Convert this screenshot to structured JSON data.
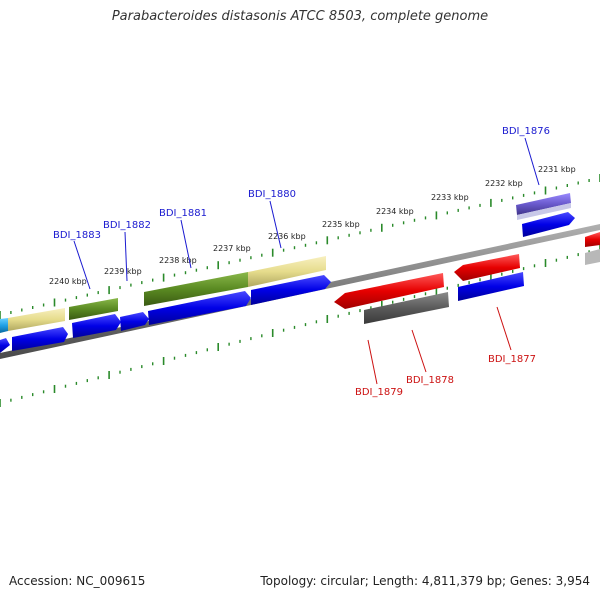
{
  "title": "Parabacteroides distasonis ATCC 8503, complete genome",
  "footer": {
    "accession": "Accession: NC_009615",
    "stats": "Topology: circular; Length: 4,811,379 bp; Genes: 3,954"
  },
  "scale_ticks": [
    "2231 kbp",
    "2232 kbp",
    "2233 kbp",
    "2234 kbp",
    "2235 kbp",
    "2236 kbp",
    "2237 kbp",
    "2238 kbp",
    "2239 kbp",
    "2240 kbp"
  ],
  "gene_labels_forward": [
    "BDI_1876",
    "BDI_1880",
    "BDI_1881",
    "BDI_1882",
    "BDI_1883"
  ],
  "gene_labels_reverse": [
    "BDI_1877",
    "BDI_1878",
    "BDI_1879"
  ],
  "colors": {
    "backbone": "#808080",
    "tick_green": "#2a8a2a",
    "cds": "#0000e6",
    "feature_red": "#e60000",
    "feature_olive": "#5a8a22",
    "feature_khaki": "#e6dc8c",
    "feature_gray": "#5a5a5a",
    "feature_purple": "#6a5acd",
    "feature_cyan": "#1ea0e6",
    "label_blue": "#1a1ad0",
    "label_red": "#cc1111"
  }
}
